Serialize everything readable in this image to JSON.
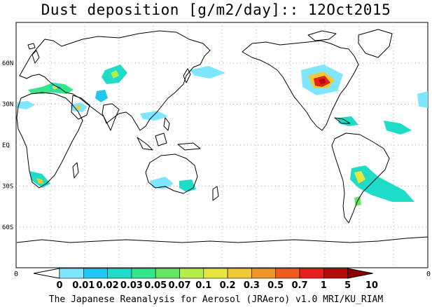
{
  "title": "Dust deposition [g/m2/day]:: 12Oct2015",
  "footer": "The Japanese Reanalysis for Aerosol (JRAero) v1.0 MRI/KU_RIAM",
  "lat_labels": [
    "60N",
    "30N",
    "EQ",
    "30S",
    "60S"
  ],
  "lat_values": [
    60,
    30,
    0,
    -30,
    -60
  ],
  "lon_edge_label": "0",
  "colorbar": {
    "labels": [
      "0",
      "0.01",
      "0.02",
      "0.03",
      "0.05",
      "0.07",
      "0.1",
      "0.2",
      "0.3",
      "0.5",
      "0.7",
      "1",
      "5",
      "10"
    ],
    "colors": [
      "#ffffff",
      "#7fe6ff",
      "#1ec8f0",
      "#1edcc8",
      "#32e68c",
      "#64e664",
      "#b4ee46",
      "#e6e63c",
      "#f0c832",
      "#f09628",
      "#f05a1e",
      "#e61e1e",
      "#b40a0a",
      "#8c0000"
    ]
  },
  "map": {
    "land_color": "#ffffff",
    "coast_color": "#000000",
    "grid_color": "#999999"
  }
}
